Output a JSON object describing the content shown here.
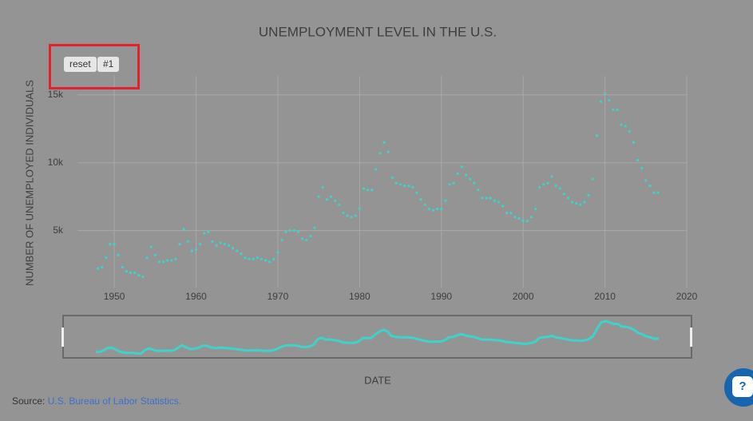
{
  "chart_data": {
    "type": "scatter",
    "title": "UNEMPLOYMENT LEVEL IN THE U.S.",
    "y_label": "NUMBER OF UNEMPLOYED INDIVIDUALS",
    "x_label": "DATE",
    "color": "#3dd3ca",
    "xlim": [
      1945.5,
      2020
    ],
    "ylim": [
      800,
      16400
    ],
    "xticks": [
      1950,
      1960,
      1970,
      1980,
      1990,
      2000,
      2010,
      2020
    ],
    "yticks": [
      {
        "value": 5000,
        "label": "5k"
      },
      {
        "value": 10000,
        "label": "10k"
      },
      {
        "value": 15000,
        "label": "15k"
      }
    ],
    "grid": true,
    "x": [
      1948,
      1948.5,
      1949,
      1949.5,
      1950,
      1950.5,
      1951,
      1951.5,
      1952,
      1952.5,
      1953,
      1953.5,
      1954,
      1954.5,
      1955,
      1955.5,
      1956,
      1956.5,
      1957,
      1957.5,
      1958,
      1958.5,
      1959,
      1959.5,
      1960,
      1960.5,
      1961,
      1961.5,
      1962,
      1962.5,
      1963,
      1963.5,
      1964,
      1964.5,
      1965,
      1965.5,
      1966,
      1966.5,
      1967,
      1967.5,
      1968,
      1968.5,
      1969,
      1969.5,
      1970,
      1970.5,
      1971,
      1971.5,
      1972,
      1972.5,
      1973,
      1973.5,
      1974,
      1974.5,
      1975,
      1975.5,
      1976,
      1976.5,
      1977,
      1977.5,
      1978,
      1978.5,
      1979,
      1979.5,
      1980,
      1980.5,
      1981,
      1981.5,
      1982,
      1982.5,
      1983,
      1983.5,
      1984,
      1984.5,
      1985,
      1985.5,
      1986,
      1986.5,
      1987,
      1987.5,
      1988,
      1988.5,
      1989,
      1989.5,
      1990,
      1990.5,
      1991,
      1991.5,
      1992,
      1992.5,
      1993,
      1993.5,
      1994,
      1994.5,
      1995,
      1995.5,
      1996,
      1996.5,
      1997,
      1997.5,
      1998,
      1998.5,
      1999,
      1999.5,
      2000,
      2000.5,
      2001,
      2001.5,
      2002,
      2002.5,
      2003,
      2003.5,
      2004,
      2004.5,
      2005,
      2005.5,
      2006,
      2006.5,
      2007,
      2007.5,
      2008,
      2008.5,
      2009,
      2009.5,
      2010,
      2010.5,
      2011,
      2011.5,
      2012,
      2012.5,
      2013,
      2013.5,
      2014,
      2014.5,
      2015,
      2015.5,
      2016,
      2016.5
    ],
    "values": [
      2200,
      2300,
      3000,
      4000,
      4000,
      3200,
      2300,
      2000,
      1900,
      1900,
      1700,
      1600,
      3000,
      3800,
      3200,
      2700,
      2700,
      2800,
      2800,
      2900,
      4000,
      5100,
      4200,
      3500,
      3600,
      4000,
      4800,
      4900,
      4200,
      3900,
      4100,
      4000,
      3900,
      3700,
      3500,
      3300,
      3000,
      2900,
      2900,
      3000,
      2900,
      2800,
      2700,
      2900,
      3400,
      4300,
      4900,
      5000,
      5000,
      4900,
      4400,
      4300,
      4600,
      5200,
      7500,
      8200,
      7300,
      7500,
      7200,
      6900,
      6300,
      6100,
      6000,
      6100,
      6600,
      8100,
      8000,
      8000,
      9500,
      10700,
      11500,
      10800,
      8900,
      8500,
      8400,
      8300,
      8300,
      8200,
      7800,
      7300,
      6900,
      6600,
      6500,
      6600,
      6600,
      7200,
      8400,
      8500,
      9200,
      9700,
      9100,
      8800,
      8500,
      8000,
      7400,
      7400,
      7400,
      7200,
      7100,
      6800,
      6300,
      6300,
      6000,
      5900,
      5700,
      5700,
      6000,
      6600,
      8200,
      8400,
      8500,
      9000,
      8300,
      8100,
      7700,
      7400,
      7100,
      7000,
      6900,
      7100,
      7600,
      8800,
      12000,
      14500,
      15100,
      14600,
      13900,
      13900,
      12800,
      12700,
      12300,
      11500,
      10200,
      9600,
      8700,
      8300,
      7800,
      7800
    ]
  },
  "controls": {
    "buttons": [
      "reset",
      "#1"
    ]
  },
  "source": {
    "prefix": "Source:",
    "link": "U.S. Bureau of Labor Statistics."
  },
  "help_button": "?"
}
